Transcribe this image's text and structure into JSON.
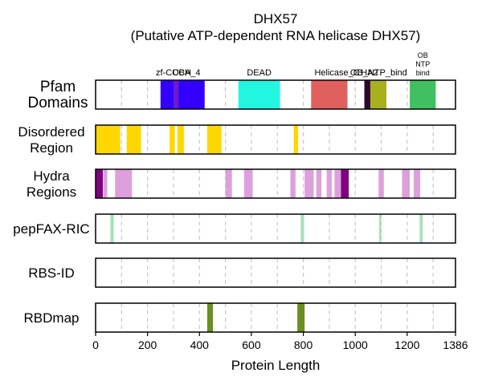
{
  "chart_data": {
    "type": "bar",
    "title": "DHX57",
    "subtitle": "(Putative ATP-dependent RNA helicase DHX57)",
    "xlabel": "Protein Length",
    "xlim": [
      0,
      1386
    ],
    "xticks": [
      "0",
      "200",
      "400",
      "600",
      "800",
      "1000",
      "1200",
      "1386"
    ],
    "xtick_values": [
      0,
      200,
      400,
      600,
      800,
      1000,
      1200,
      1386
    ],
    "grid": "vertical dashed",
    "tracks": [
      {
        "name": "Pfam\nDomains",
        "segments": [
          {
            "start": 250,
            "end": 420,
            "color": "#3300ff",
            "label": "zf-CCCH"
          },
          {
            "start": 300,
            "end": 320,
            "color": "#6a1bd0",
            "label": "UBA_4"
          },
          {
            "start": 550,
            "end": 710,
            "color": "#22f5e0",
            "label": "DEAD"
          },
          {
            "start": 830,
            "end": 970,
            "color": "#e05f5f",
            "label": "Helicase_C"
          },
          {
            "start": 1035,
            "end": 1058,
            "color": "#2d0a2a",
            "label": "HA2"
          },
          {
            "start": 1058,
            "end": 1120,
            "color": "#a8b020",
            "label": "OB_NTP_bind"
          },
          {
            "start": 1210,
            "end": 1310,
            "color": "#40c060",
            "label": "OB\nNTP\nbind"
          }
        ],
        "extra_labels": [
          {
            "text": "zf-CCCH",
            "x": 300
          },
          {
            "text": "UBA_4",
            "x": 350
          },
          {
            "text": "DEAD",
            "x": 630
          },
          {
            "text": "Helicase_C",
            "x": 930
          },
          {
            "text": "HA2",
            "x": 1055
          },
          {
            "text": "OB_NTP_bind",
            "x": 1090
          }
        ]
      },
      {
        "name": "Disordered\nRegion",
        "segments": [
          {
            "start": 0,
            "end": 95,
            "color": "#ffd700"
          },
          {
            "start": 120,
            "end": 175,
            "color": "#ffd700"
          },
          {
            "start": 285,
            "end": 305,
            "color": "#ffd700"
          },
          {
            "start": 315,
            "end": 340,
            "color": "#ffd700"
          },
          {
            "start": 430,
            "end": 485,
            "color": "#ffd700"
          },
          {
            "start": 763,
            "end": 780,
            "color": "#ffd700"
          }
        ]
      },
      {
        "name": "Hydra\nRegions",
        "segments": [
          {
            "start": 0,
            "end": 28,
            "color": "#800080"
          },
          {
            "start": 30,
            "end": 45,
            "color": "#dda0dd"
          },
          {
            "start": 75,
            "end": 140,
            "color": "#dda0dd"
          },
          {
            "start": 500,
            "end": 525,
            "color": "#dda0dd"
          },
          {
            "start": 572,
            "end": 605,
            "color": "#dda0dd"
          },
          {
            "start": 750,
            "end": 770,
            "color": "#dda0dd"
          },
          {
            "start": 805,
            "end": 840,
            "color": "#dda0dd"
          },
          {
            "start": 850,
            "end": 870,
            "color": "#dda0dd"
          },
          {
            "start": 890,
            "end": 910,
            "color": "#dda0dd"
          },
          {
            "start": 920,
            "end": 945,
            "color": "#dda0dd"
          },
          {
            "start": 945,
            "end": 975,
            "color": "#800080"
          },
          {
            "start": 1090,
            "end": 1110,
            "color": "#dda0dd"
          },
          {
            "start": 1180,
            "end": 1210,
            "color": "#dda0dd"
          },
          {
            "start": 1225,
            "end": 1250,
            "color": "#dda0dd"
          }
        ]
      },
      {
        "name": "pepFAX-RIC",
        "segments": [
          {
            "start": 57,
            "end": 70,
            "color": "#a8e0b8"
          },
          {
            "start": 790,
            "end": 803,
            "color": "#a8e0b8"
          },
          {
            "start": 1092,
            "end": 1100,
            "color": "#a8e0b8"
          },
          {
            "start": 1248,
            "end": 1260,
            "color": "#a8e0b8"
          }
        ]
      },
      {
        "name": "RBS-ID",
        "segments": []
      },
      {
        "name": "RBDmap",
        "segments": [
          {
            "start": 430,
            "end": 452,
            "color": "#6b8e23"
          },
          {
            "start": 777,
            "end": 805,
            "color": "#6b8e23"
          }
        ]
      }
    ]
  }
}
